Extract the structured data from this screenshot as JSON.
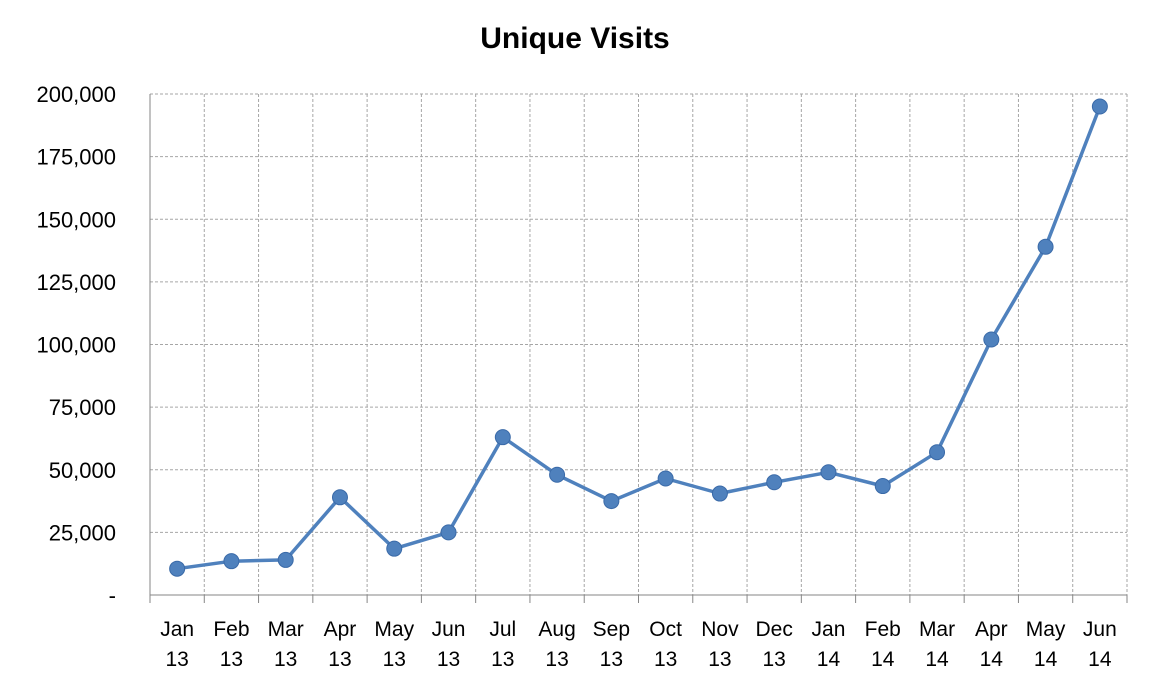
{
  "chart_data": {
    "type": "line",
    "title": "Unique Visits",
    "xlabel": "",
    "ylabel": "",
    "categories": [
      [
        "Jan",
        "13"
      ],
      [
        "Feb",
        "13"
      ],
      [
        "Mar",
        "13"
      ],
      [
        "Apr",
        "13"
      ],
      [
        "May",
        "13"
      ],
      [
        "Jun",
        "13"
      ],
      [
        "Jul",
        "13"
      ],
      [
        "Aug",
        "13"
      ],
      [
        "Sep",
        "13"
      ],
      [
        "Oct",
        "13"
      ],
      [
        "Nov",
        "13"
      ],
      [
        "Dec",
        "13"
      ],
      [
        "Jan",
        "14"
      ],
      [
        "Feb",
        "14"
      ],
      [
        "Mar",
        "14"
      ],
      [
        "Apr",
        "14"
      ],
      [
        "May",
        "14"
      ],
      [
        "Jun",
        "14"
      ]
    ],
    "series": [
      {
        "values": [
          10500,
          13500,
          14000,
          39000,
          18500,
          25000,
          63000,
          48000,
          37500,
          46500,
          40500,
          45000,
          49000,
          43500,
          57000,
          102000,
          139000,
          195000
        ]
      }
    ],
    "ylim": [
      0,
      200000
    ],
    "y_ticks": [
      0,
      25000,
      50000,
      75000,
      100000,
      125000,
      150000,
      175000,
      200000
    ],
    "y_tick_labels": [
      "-",
      "25,000",
      "50,000",
      "75,000",
      "100,000",
      "125,000",
      "150,000",
      "175,000",
      "200,000"
    ],
    "grid": true,
    "legend": "none",
    "colors": {
      "line": "#4F81BD",
      "marker": "#4F81BD",
      "grid": "#A6A6A6",
      "axis": "#868686"
    }
  }
}
